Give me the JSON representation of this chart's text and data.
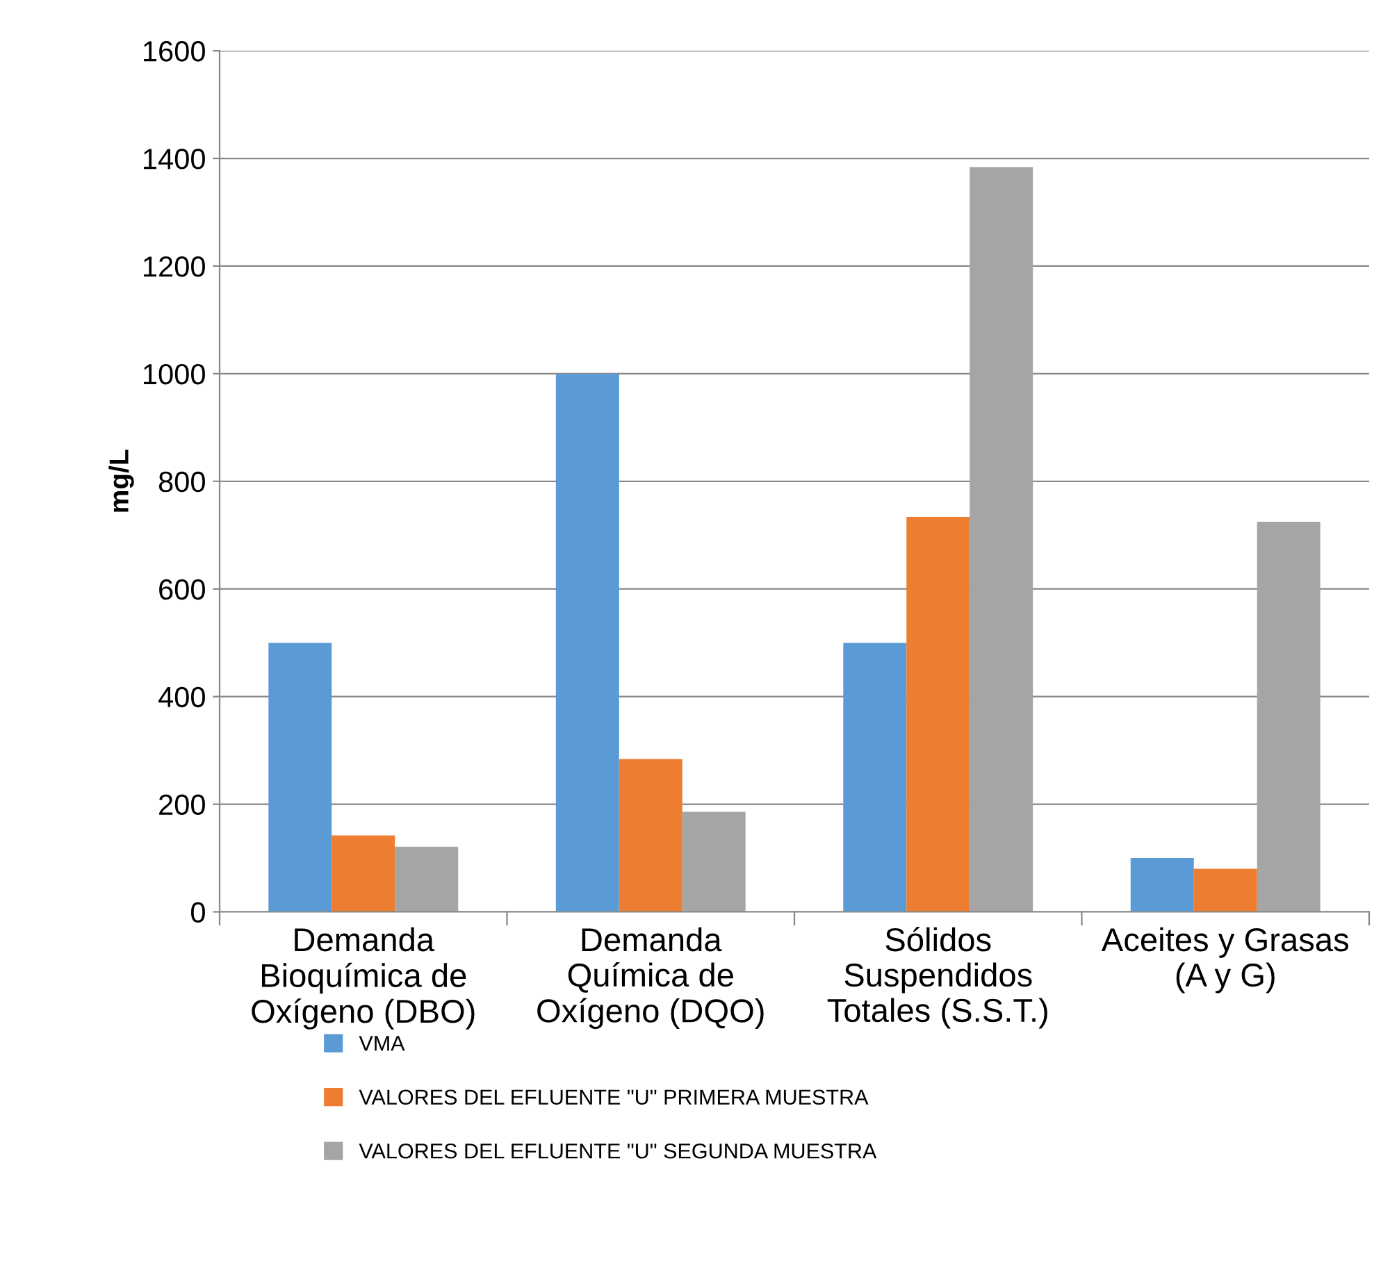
{
  "chart_data": {
    "type": "bar",
    "ylabel": "mg/L",
    "categories": [
      "Demanda\nBioquímica de\nOxígeno (DBO)",
      "Demanda\nQuímica de\nOxígeno (DQO)",
      "Sólidos\nSuspendidos\nTotales (S.S.T.)",
      "Aceites y Grasas\n(A y G)"
    ],
    "series": [
      {
        "name": "VMA",
        "color": "#5b9bd5",
        "values": [
          500,
          1000,
          500,
          100
        ]
      },
      {
        "name": "VALORES DEL EFLUENTE \"U\" PRIMERA MUESTRA",
        "color": "#ed7d31",
        "values": [
          142,
          284,
          734,
          80
        ]
      },
      {
        "name": "VALORES DEL EFLUENTE \"U\" SEGUNDA MUESTRA",
        "color": "#a5a5a5",
        "values": [
          121,
          186,
          1384,
          725
        ]
      }
    ],
    "ylim": [
      0,
      1600
    ],
    "yticks": [
      0,
      200,
      400,
      600,
      800,
      1000,
      1200,
      1400,
      1600
    ],
    "grid": "y",
    "legend": "bottom"
  }
}
